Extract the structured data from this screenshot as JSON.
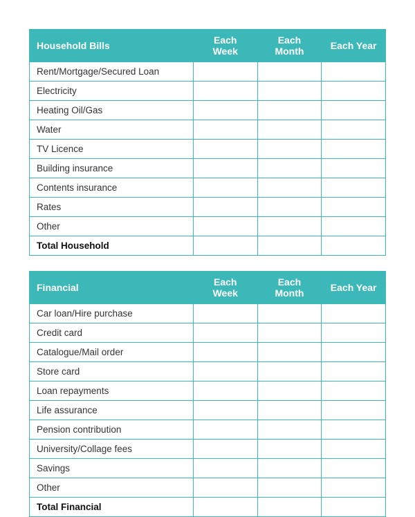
{
  "style": {
    "header_bg": "#3cb8b8",
    "header_fg": "#ffffff",
    "border_color": "#3cb8b8",
    "text_color": "#333333",
    "font_size_header": 14,
    "font_size_body": 13.5,
    "page_bg": "#ffffff"
  },
  "period_columns": [
    "Each Week",
    "Each Month",
    "Each Year"
  ],
  "tables": {
    "household": {
      "title": "Household Bills",
      "rows": [
        "Rent/Mortgage/Secured Loan",
        "Electricity",
        "Heating Oil/Gas",
        "Water",
        "TV Licence",
        "Building insurance",
        "Contents insurance",
        "Rates",
        "Other"
      ],
      "total_label": "Total Household"
    },
    "financial": {
      "title": "Financial",
      "rows": [
        "Car loan/Hire purchase",
        "Credit card",
        "Catalogue/Mail order",
        "Store card",
        "Loan repayments",
        "Life assurance",
        "Pension contribution",
        "University/Collage fees",
        "Savings",
        "Other"
      ],
      "total_label": "Total Financial"
    }
  }
}
